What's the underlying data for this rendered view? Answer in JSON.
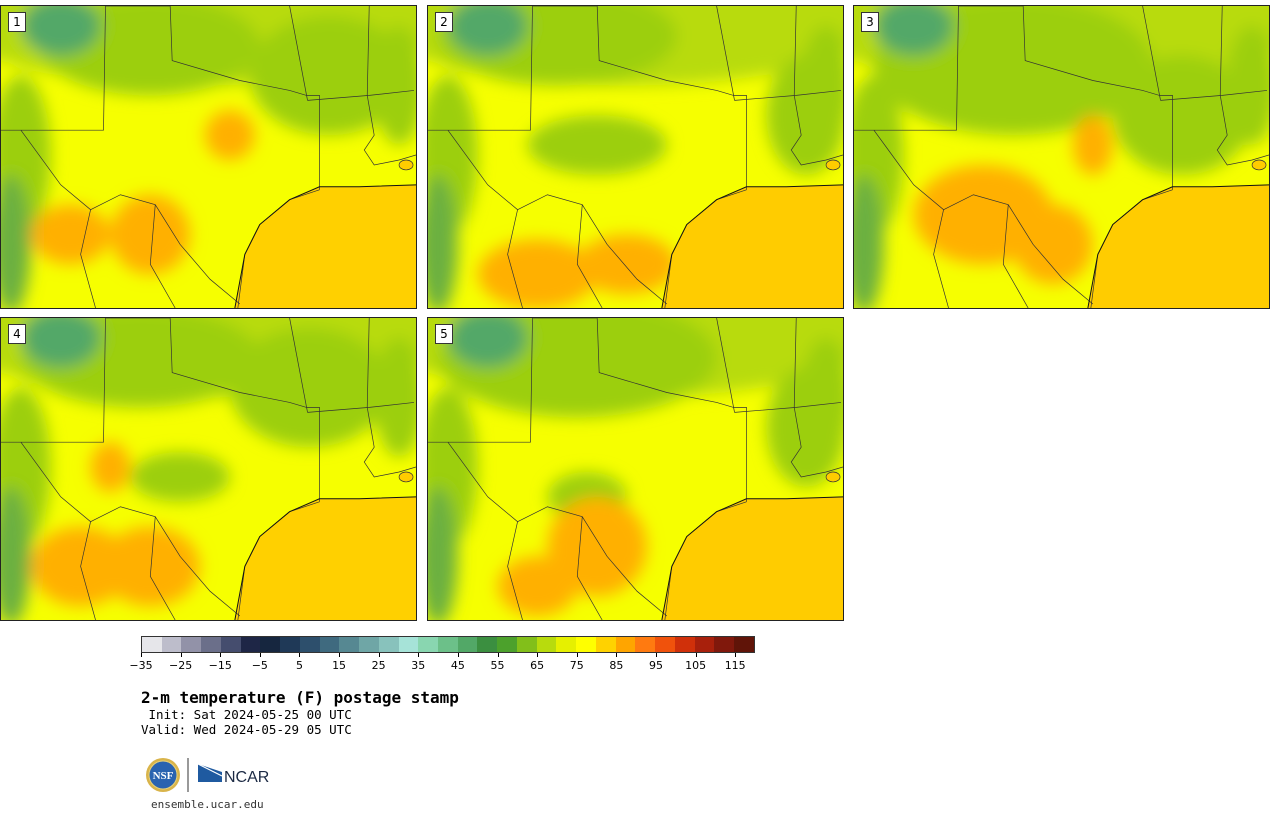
{
  "panels": [
    {
      "label": "1"
    },
    {
      "label": "2"
    },
    {
      "label": "3"
    },
    {
      "label": "4"
    },
    {
      "label": "5"
    }
  ],
  "colorbar": {
    "colors": [
      "#e6e6ea",
      "#bdbdcb",
      "#9292a8",
      "#6b6f8a",
      "#454d6e",
      "#1e2646",
      "#16263f",
      "#1f3957",
      "#2d4f6c",
      "#3f6a7f",
      "#568892",
      "#6fa6a6",
      "#88c2bc",
      "#a6e3d8",
      "#89d6b0",
      "#6cc089",
      "#52a867",
      "#3b8f40",
      "#4ca12c",
      "#82bf1a",
      "#b8db0d",
      "#e6f000",
      "#ffff00",
      "#ffd200",
      "#ffa500",
      "#ff7a10",
      "#f0520c",
      "#d0300a",
      "#a8200c",
      "#80180c",
      "#601408"
    ],
    "tick_labels": [
      "−35",
      "−25",
      "−15",
      "−5",
      "5",
      "15",
      "25",
      "35",
      "45",
      "55",
      "65",
      "75",
      "85",
      "95",
      "105",
      "115"
    ]
  },
  "title": "2-m temperature (F) postage stamp",
  "init": " Init: Sat 2024-05-25 00 UTC",
  "valid": "Valid: Wed 2024-05-29 05 UTC",
  "logos": {
    "nsf": "NSF",
    "ncar": "NCAR"
  },
  "site": "ensemble.ucar.edu"
}
